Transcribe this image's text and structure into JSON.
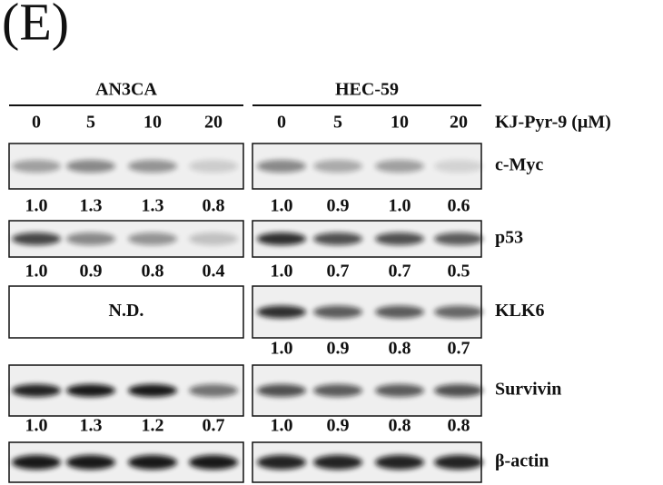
{
  "panel_label": "(E)",
  "treatment_label": "KJ-Pyr-9 (μM)",
  "cell_lines": [
    {
      "name": "AN3CA",
      "concentrations": [
        "0",
        "5",
        "10",
        "20"
      ]
    },
    {
      "name": "HEC-59",
      "concentrations": [
        "0",
        "5",
        "10",
        "20"
      ]
    }
  ],
  "blots": [
    {
      "protein": "c-Myc",
      "lanes": [
        {
          "quant": [
            "1.0",
            "1.3",
            "1.3",
            "0.8"
          ]
        },
        {
          "quant": [
            "1.0",
            "0.9",
            "1.0",
            "0.6"
          ]
        }
      ]
    },
    {
      "protein": "p53",
      "lanes": [
        {
          "quant": [
            "1.0",
            "0.9",
            "0.8",
            "0.4"
          ]
        },
        {
          "quant": [
            "1.0",
            "0.7",
            "0.7",
            "0.5"
          ]
        }
      ]
    },
    {
      "protein": "KLK6",
      "lanes": [
        {
          "note": "N.D."
        },
        {
          "quant": [
            "1.0",
            "0.9",
            "0.8",
            "0.7"
          ]
        }
      ]
    },
    {
      "protein": "Survivin",
      "lanes": [
        {
          "quant": [
            "1.0",
            "1.3",
            "1.2",
            "0.7"
          ]
        },
        {
          "quant": [
            "1.0",
            "0.9",
            "0.8",
            "0.8"
          ]
        }
      ]
    },
    {
      "protein": "β-actin",
      "lanes": [
        {},
        {}
      ]
    }
  ]
}
